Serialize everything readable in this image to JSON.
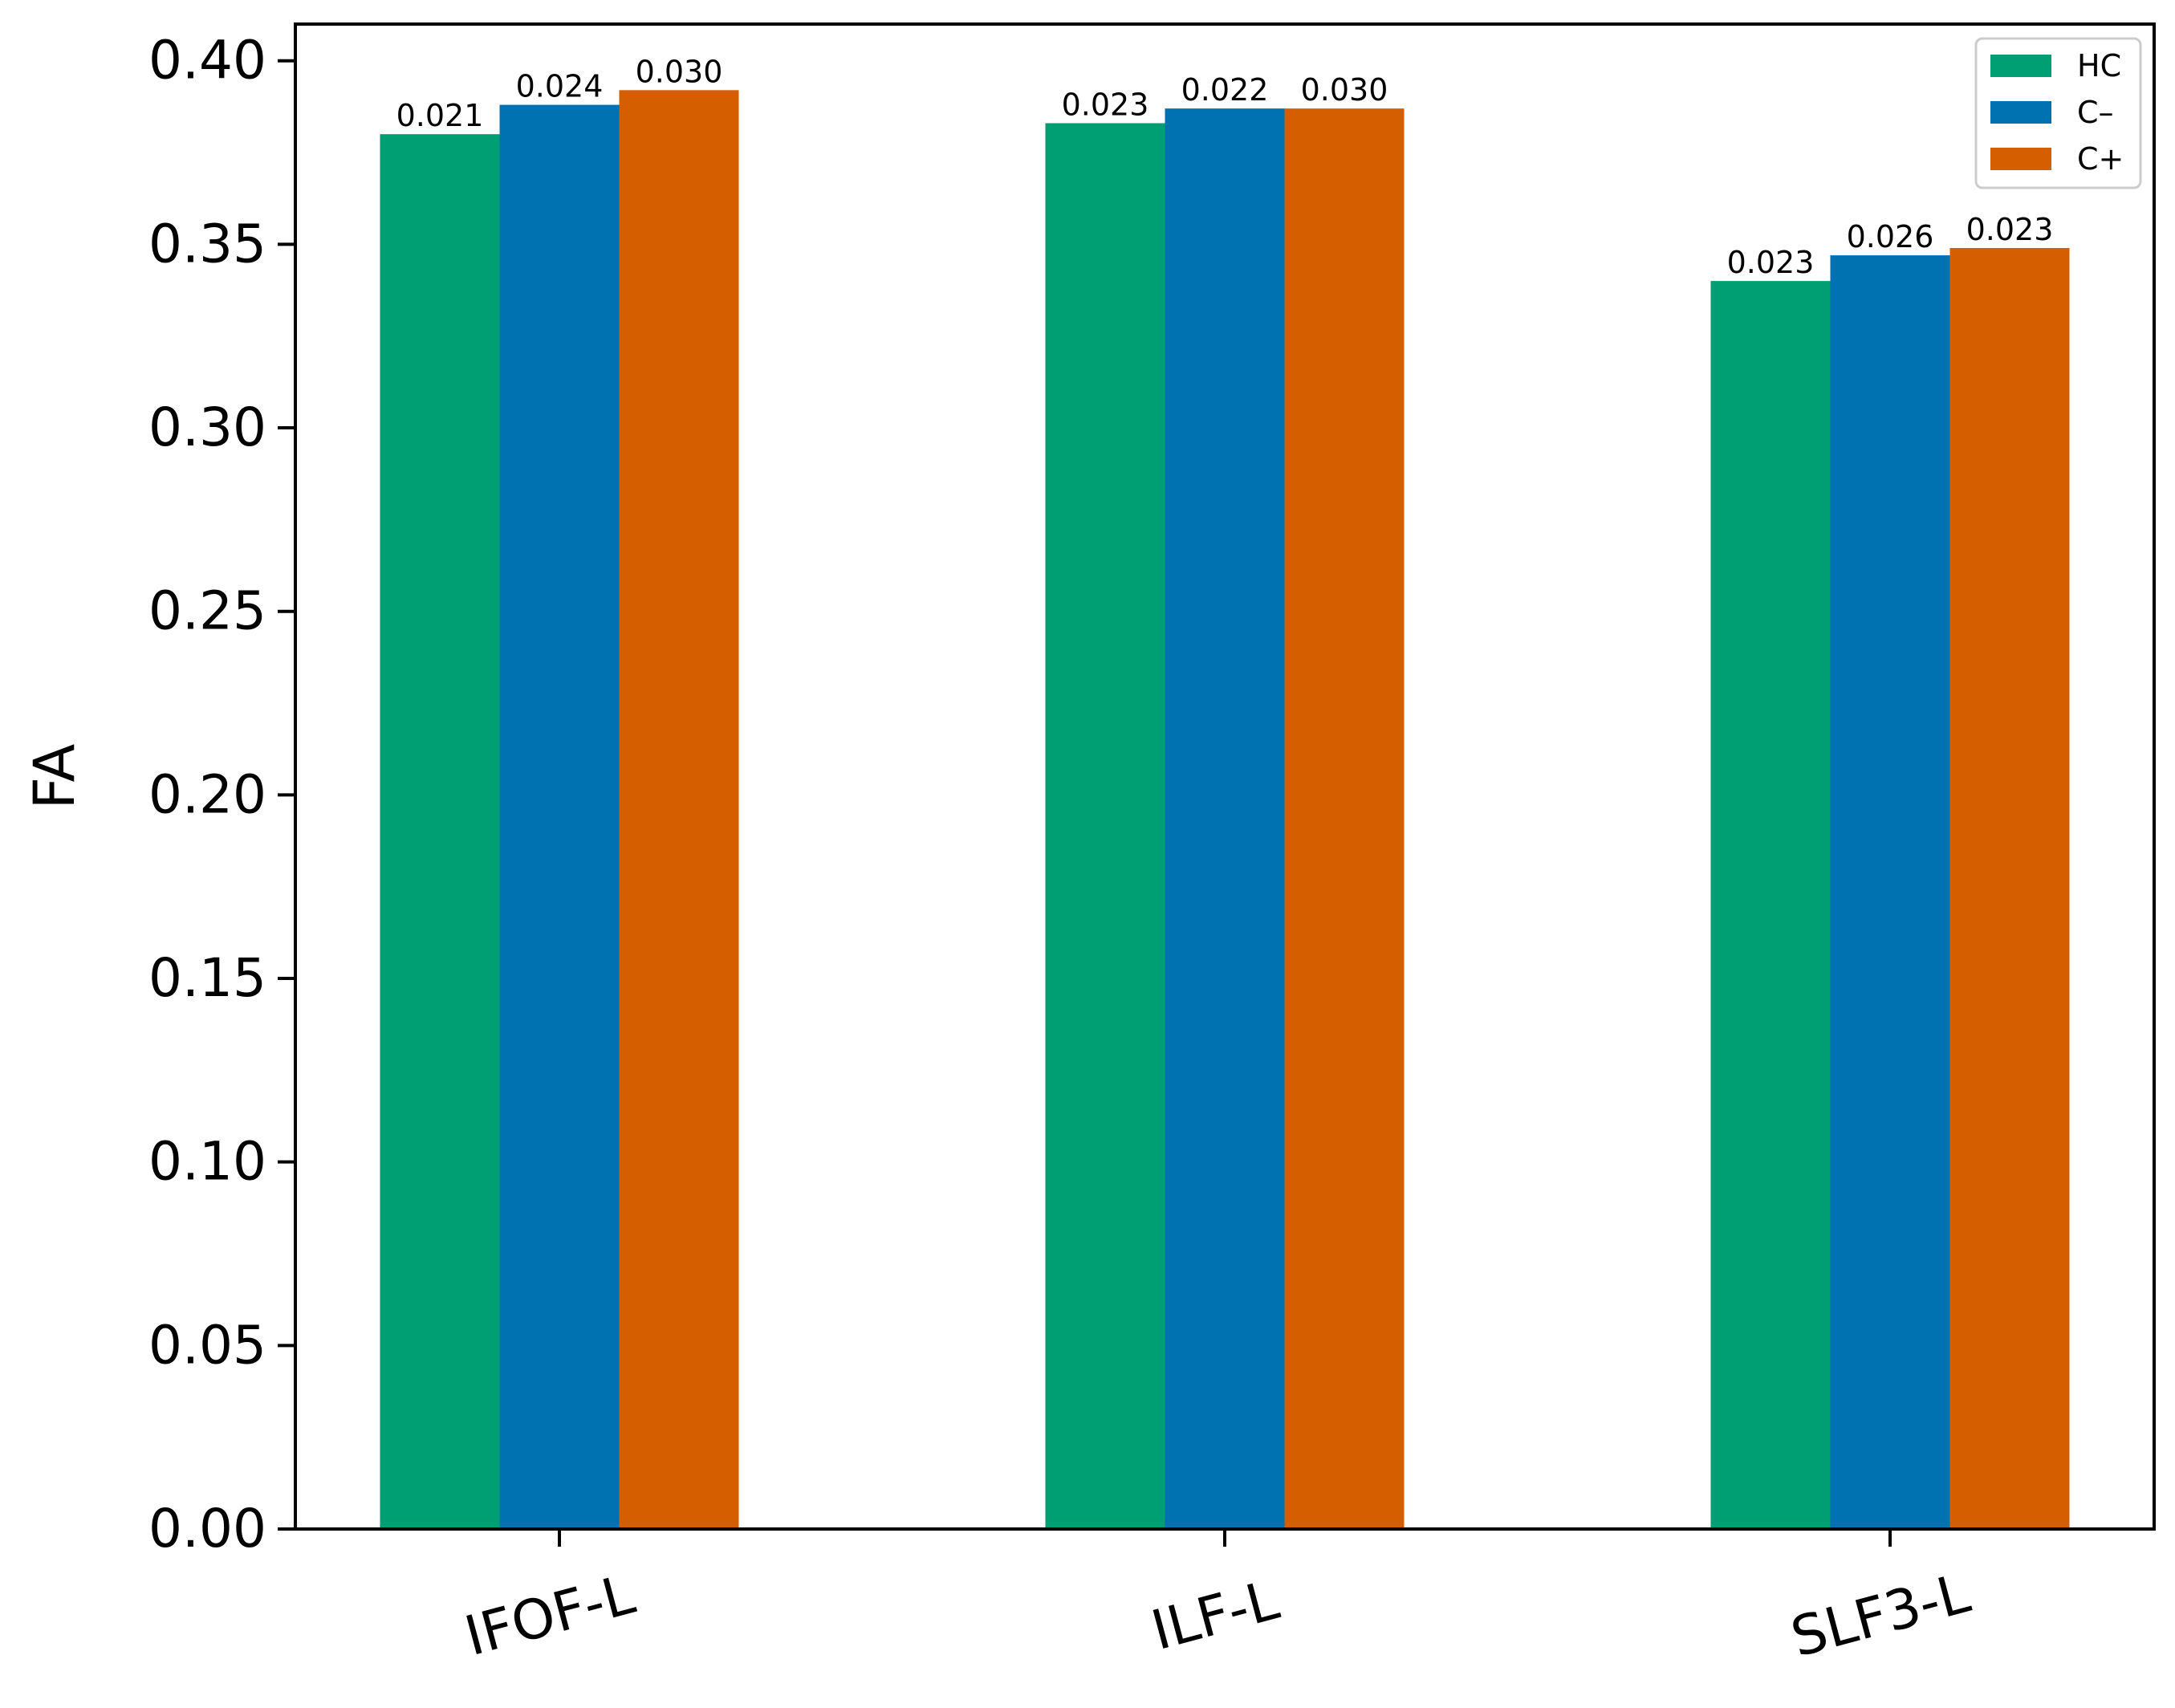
{
  "chart_data": {
    "type": "bar",
    "title": "",
    "xlabel": "",
    "ylabel": "FA",
    "ylim": [
      0,
      0.41
    ],
    "yticks": [
      0.0,
      0.05,
      0.1,
      0.15,
      0.2,
      0.25,
      0.3,
      0.35,
      0.4
    ],
    "ytick_labels": [
      "0.00",
      "0.05",
      "0.10",
      "0.15",
      "0.20",
      "0.25",
      "0.30",
      "0.35",
      "0.40"
    ],
    "categories": [
      "IFOF-L",
      "ILF-L",
      "SLF3-L"
    ],
    "series": [
      {
        "name": "HC",
        "color": "#009e73",
        "values": [
          0.38,
          0.383,
          0.34
        ],
        "labels": [
          "0.021",
          "0.023",
          "0.023"
        ]
      },
      {
        "name": "C–",
        "color": "#0072b2",
        "values": [
          0.388,
          0.387,
          0.347
        ],
        "labels": [
          "0.024",
          "0.022",
          "0.026"
        ]
      },
      {
        "name": "C+",
        "color": "#d55e00",
        "values": [
          0.392,
          0.387,
          0.349
        ],
        "labels": [
          "0.030",
          "0.030",
          "0.023"
        ]
      }
    ],
    "legend_position": "top-right",
    "grid": false
  }
}
